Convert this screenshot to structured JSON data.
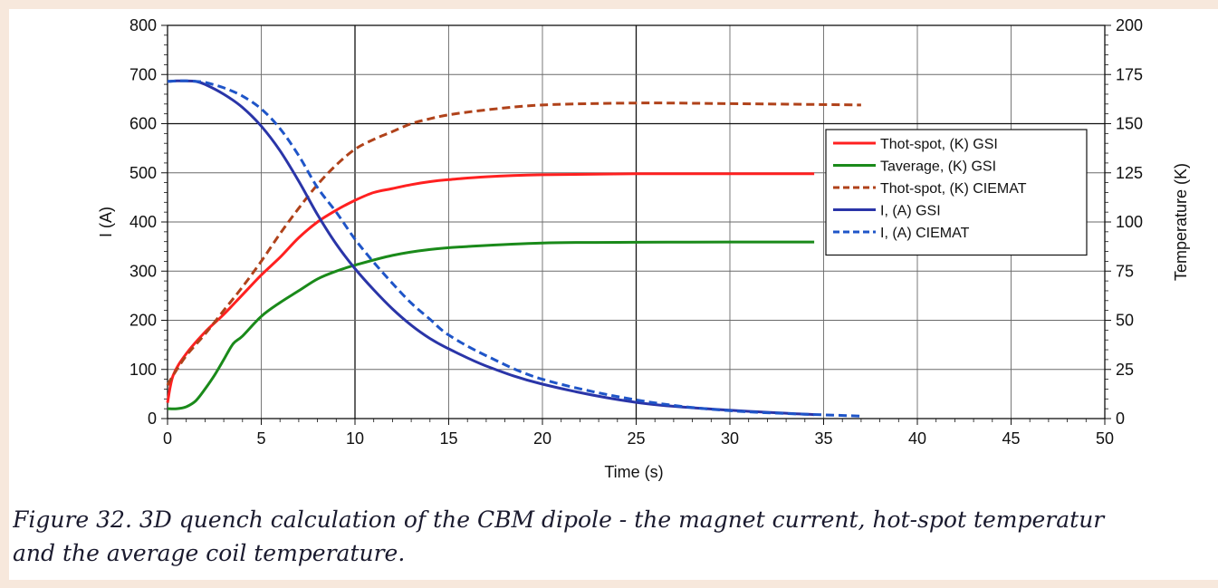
{
  "figure": {
    "caption_line1": "Figure 32. 3D quench calculation of the CBM dipole - the magnet current,  hot-spot temperatur",
    "caption_line2": "and the average coil temperature."
  },
  "chart_data": {
    "type": "line",
    "title": "",
    "xlabel": "Time (s)",
    "ylabel_left": "I (A)",
    "ylabel_right": "Temperature (K)",
    "xlim": [
      0,
      50
    ],
    "ylim_left": [
      0,
      800
    ],
    "ylim_right": [
      0,
      200
    ],
    "x_ticks": [
      0,
      5,
      10,
      15,
      20,
      25,
      30,
      35,
      40,
      45,
      50
    ],
    "y_ticks_left": [
      0,
      100,
      200,
      300,
      400,
      500,
      600,
      700,
      800
    ],
    "y_ticks_right": [
      0,
      25,
      50,
      75,
      100,
      125,
      150,
      175,
      200
    ],
    "grid": true,
    "legend_position": "right",
    "series": [
      {
        "name": "Thot-spot, (K) GSI",
        "axis": "right",
        "color": "#ff2020",
        "dash": "solid",
        "x": [
          0,
          0.3,
          1,
          2,
          3,
          4,
          5,
          6,
          7,
          8,
          9,
          10,
          11,
          12,
          13,
          14,
          15,
          17,
          20,
          25,
          30,
          34.5
        ],
        "y": [
          8,
          22,
          33,
          44,
          53,
          63,
          73,
          82,
          92,
          100,
          106,
          111,
          115,
          117,
          119,
          120.5,
          121.5,
          123,
          124,
          124.5,
          124.5,
          124.5
        ]
      },
      {
        "name": "Taverage, (K) GSI",
        "axis": "right",
        "color": "#1a8a1a",
        "dash": "solid",
        "x": [
          0,
          0.5,
          1,
          1.5,
          2,
          2.5,
          3,
          3.5,
          4,
          5,
          6,
          7,
          8,
          9,
          10,
          12,
          14,
          16,
          20,
          25,
          30,
          34.5
        ],
        "y": [
          5,
          5,
          6,
          9,
          15,
          22,
          30,
          38,
          42,
          52,
          59,
          65,
          71,
          75,
          78,
          83,
          86,
          87.5,
          89.3,
          89.7,
          89.8,
          89.8
        ]
      },
      {
        "name": "Thot-spot, (K) CIEMAT",
        "axis": "right",
        "color": "#b0421a",
        "dash": "dashed",
        "x": [
          0,
          0.3,
          1,
          2,
          3,
          4,
          5,
          6,
          7,
          8,
          9,
          10,
          11,
          12,
          13,
          14,
          15,
          17,
          20,
          25,
          30,
          37
        ],
        "y": [
          17,
          22,
          32,
          43,
          55,
          67,
          80,
          94,
          107,
          119,
          129,
          137,
          142,
          146,
          150,
          152.5,
          154.5,
          157,
          159.5,
          160.5,
          160.2,
          159.5
        ]
      },
      {
        "name": "I, (A)  GSI",
        "axis": "left",
        "color": "#2a35a8",
        "dash": "solid",
        "x": [
          0,
          0.5,
          1,
          1.5,
          2,
          3,
          4,
          5,
          6,
          7,
          8,
          9,
          10,
          11,
          12,
          13,
          14,
          15,
          17,
          20,
          25,
          30,
          34.5
        ],
        "y": [
          686,
          687,
          687,
          686,
          680,
          660,
          633,
          595,
          545,
          483,
          415,
          355,
          305,
          262,
          223,
          190,
          163,
          142,
          107,
          70,
          33,
          17,
          8
        ]
      },
      {
        "name": "I, (A) CIEMAT",
        "axis": "left",
        "color": "#1f55c8",
        "dash": "dashed",
        "x": [
          0,
          0.5,
          1,
          1.5,
          2,
          3,
          4,
          5,
          6,
          7,
          8,
          9,
          10,
          11,
          12,
          13,
          14,
          15,
          17,
          20,
          25,
          30,
          37
        ],
        "y": [
          686,
          687,
          687,
          686,
          684,
          673,
          656,
          630,
          590,
          535,
          470,
          420,
          365,
          318,
          275,
          235,
          202,
          170,
          128,
          80,
          38,
          16,
          5
        ]
      }
    ]
  }
}
